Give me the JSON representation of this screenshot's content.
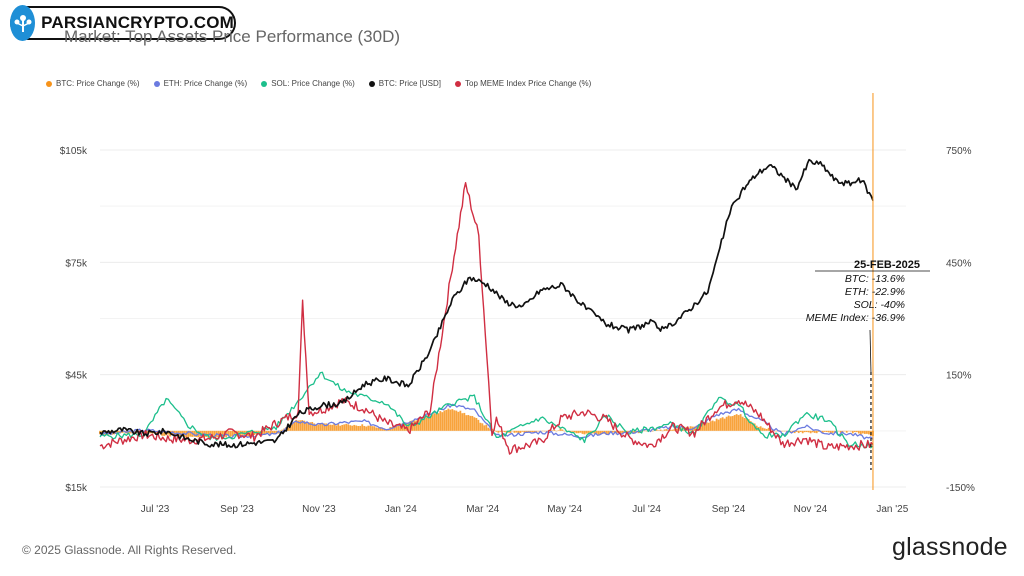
{
  "watermark": {
    "text": "PARSIANCRYPTO.COM"
  },
  "chart_data": {
    "type": "line",
    "title": "Market: Top Assets Price Performance (30D)",
    "legend": [
      {
        "label": "BTC: Price Change (%)",
        "color": "#f7931a"
      },
      {
        "label": "ETH: Price Change (%)",
        "color": "#6b7be0"
      },
      {
        "label": "SOL: Price Change (%)",
        "color": "#1dbf8c"
      },
      {
        "label": "BTC: Price [USD]",
        "color": "#111111"
      },
      {
        "label": "Top MEME Index Price Change (%)",
        "color": "#d02e42"
      }
    ],
    "x_ticks": [
      "Jul '23",
      "Sep '23",
      "Nov '23",
      "Jan '24",
      "Mar '24",
      "May '24",
      "Jul '24",
      "Sep '24",
      "Nov '24",
      "Jan '25"
    ],
    "y_left_ticks": [
      "$105k",
      "$75k",
      "$45k",
      "$15k"
    ],
    "y_left_range": [
      15000,
      105000
    ],
    "y_right_ticks": [
      "750%",
      "450%",
      "150%",
      "-150%"
    ],
    "y_right_range": [
      -150,
      750
    ],
    "x_range_months": [
      0,
      18.3
    ],
    "series": [
      {
        "name": "BTC: Price [USD]",
        "color": "#111111",
        "axis": "left",
        "points": [
          [
            0,
            29500
          ],
          [
            0.5,
            30300
          ],
          [
            1,
            29200
          ],
          [
            1.5,
            29900
          ],
          [
            2,
            27800
          ],
          [
            2.5,
            26500
          ],
          [
            3,
            26200
          ],
          [
            3.5,
            26800
          ],
          [
            4,
            27300
          ],
          [
            4.5,
            34500
          ],
          [
            5,
            36800
          ],
          [
            5.5,
            37300
          ],
          [
            6,
            42500
          ],
          [
            6.5,
            44000
          ],
          [
            7,
            42000
          ],
          [
            7.5,
            51500
          ],
          [
            8,
            65000
          ],
          [
            8.4,
            71000
          ],
          [
            8.8,
            69000
          ],
          [
            9.2,
            64500
          ],
          [
            9.6,
            63000
          ],
          [
            10,
            67500
          ],
          [
            10.5,
            69000
          ],
          [
            11,
            63000
          ],
          [
            11.5,
            58500
          ],
          [
            12,
            56800
          ],
          [
            12.5,
            59000
          ],
          [
            12.8,
            56800
          ],
          [
            13.3,
            61500
          ],
          [
            13.8,
            67200
          ],
          [
            14,
            75500
          ],
          [
            14.3,
            88500
          ],
          [
            14.6,
            94500
          ],
          [
            14.9,
            98500
          ],
          [
            15.2,
            101000
          ],
          [
            15.5,
            98000
          ],
          [
            15.8,
            94500
          ],
          [
            16.1,
            102000
          ],
          [
            16.4,
            101000
          ],
          [
            16.7,
            96800
          ],
          [
            17,
            96000
          ],
          [
            17.3,
            97000
          ],
          [
            17.55,
            91500
          ]
        ]
      },
      {
        "name": "BTC: Price Change (%)",
        "color": "#f7931a",
        "axis": "right",
        "style": "bars",
        "points": [
          [
            0,
            -10
          ],
          [
            1,
            -5
          ],
          [
            2,
            -18
          ],
          [
            3,
            -14
          ],
          [
            4,
            -8
          ],
          [
            4.5,
            30
          ],
          [
            5,
            18
          ],
          [
            6,
            15
          ],
          [
            6.5,
            5
          ],
          [
            7.5,
            42
          ],
          [
            8,
            60
          ],
          [
            8.5,
            35
          ],
          [
            9,
            -4
          ],
          [
            10,
            -3
          ],
          [
            10.5,
            4
          ],
          [
            11,
            -10
          ],
          [
            11.5,
            -8
          ],
          [
            12,
            -6
          ],
          [
            13,
            6
          ],
          [
            13.5,
            12
          ],
          [
            14,
            30
          ],
          [
            14.5,
            45
          ],
          [
            15,
            10
          ],
          [
            15.5,
            -3
          ],
          [
            16,
            -4
          ],
          [
            16.5,
            -5
          ],
          [
            17,
            -2
          ],
          [
            17.55,
            -13.6
          ]
        ]
      },
      {
        "name": "ETH: Price Change (%)",
        "color": "#6b7be0",
        "axis": "right",
        "points": [
          [
            0,
            -10
          ],
          [
            1,
            2
          ],
          [
            2,
            -7
          ],
          [
            3,
            -15
          ],
          [
            4,
            -9
          ],
          [
            4.5,
            26
          ],
          [
            5,
            15
          ],
          [
            5.5,
            22
          ],
          [
            6,
            25
          ],
          [
            6.5,
            6
          ],
          [
            7.5,
            45
          ],
          [
            8,
            70
          ],
          [
            8.5,
            55
          ],
          [
            9,
            -14
          ],
          [
            10,
            -3
          ],
          [
            10.5,
            -9
          ],
          [
            11,
            -15
          ],
          [
            11.5,
            -6
          ],
          [
            12,
            -4
          ],
          [
            13,
            10
          ],
          [
            13.5,
            7
          ],
          [
            14,
            43
          ],
          [
            14.5,
            57
          ],
          [
            15,
            28
          ],
          [
            15.5,
            -10
          ],
          [
            16,
            12
          ],
          [
            16.5,
            -6
          ],
          [
            17,
            -7
          ],
          [
            17.55,
            -22.9
          ]
        ]
      },
      {
        "name": "SOL: Price Change (%)",
        "color": "#1dbf8c",
        "axis": "right",
        "points": [
          [
            0,
            -15
          ],
          [
            1,
            -10
          ],
          [
            1.5,
            85
          ],
          [
            2,
            15
          ],
          [
            2.5,
            -20
          ],
          [
            3,
            -15
          ],
          [
            4,
            10
          ],
          [
            4.5,
            80
          ],
          [
            5,
            155
          ],
          [
            5.5,
            110
          ],
          [
            6,
            90
          ],
          [
            6.5,
            75
          ],
          [
            7,
            10
          ],
          [
            7.5,
            40
          ],
          [
            8,
            75
          ],
          [
            8.5,
            90
          ],
          [
            9,
            -20
          ],
          [
            10,
            35
          ],
          [
            10.5,
            5
          ],
          [
            11,
            -25
          ],
          [
            11.5,
            40
          ],
          [
            12,
            -5
          ],
          [
            13,
            18
          ],
          [
            13.5,
            -10
          ],
          [
            14,
            85
          ],
          [
            14.5,
            70
          ],
          [
            15,
            -10
          ],
          [
            15.5,
            -15
          ],
          [
            16,
            45
          ],
          [
            16.5,
            30
          ],
          [
            17,
            -35
          ],
          [
            17.55,
            -40
          ]
        ]
      },
      {
        "name": "Top MEME Index Price Change (%)",
        "color": "#d02e42",
        "axis": "right",
        "points": [
          [
            0,
            -40
          ],
          [
            1,
            -10
          ],
          [
            1.5,
            -20
          ],
          [
            2,
            -25
          ],
          [
            2.5,
            -20
          ],
          [
            3,
            -5
          ],
          [
            3.5,
            -15
          ],
          [
            4,
            20
          ],
          [
            4.5,
            50
          ],
          [
            4.6,
            340
          ],
          [
            4.75,
            50
          ],
          [
            5,
            55
          ],
          [
            5.5,
            80
          ],
          [
            6,
            60
          ],
          [
            6.5,
            20
          ],
          [
            7,
            0
          ],
          [
            7.5,
            55
          ],
          [
            8,
            440
          ],
          [
            8.3,
            660
          ],
          [
            8.6,
            520
          ],
          [
            8.9,
            0
          ],
          [
            9,
            30
          ],
          [
            9.3,
            -50
          ],
          [
            10,
            -30
          ],
          [
            10.5,
            35
          ],
          [
            11,
            50
          ],
          [
            11.5,
            30
          ],
          [
            12,
            -20
          ],
          [
            12.5,
            -40
          ],
          [
            13,
            10
          ],
          [
            13.5,
            -5
          ],
          [
            14,
            60
          ],
          [
            14.5,
            85
          ],
          [
            15,
            40
          ],
          [
            15.5,
            -35
          ],
          [
            16,
            -20
          ],
          [
            16.5,
            -45
          ],
          [
            17,
            -40
          ],
          [
            17.55,
            -36.9
          ]
        ]
      }
    ],
    "annotation": {
      "date": "25-FEB-2025",
      "lines": [
        "BTC: -13.6%",
        "ETH: -22.9%",
        "SOL: -40%",
        "MEME Index: -36.9%"
      ]
    }
  },
  "footer": {
    "copyright": "© 2025 Glassnode. All Rights Reserved.",
    "brand": "glassnode"
  }
}
